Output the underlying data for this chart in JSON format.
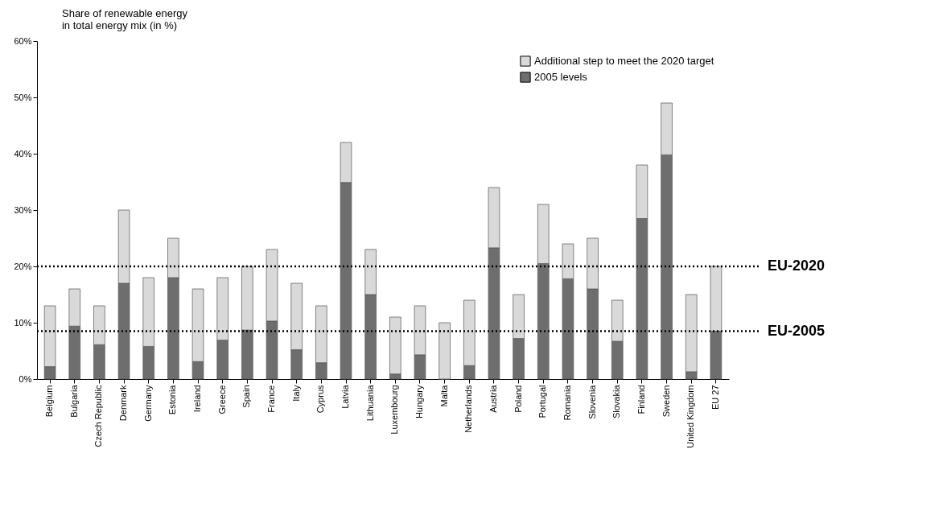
{
  "chart_data": {
    "type": "bar",
    "title": "Share of renewable energy\nin total energy mix (in %)",
    "categories": [
      "Belgium",
      "Bulgaria",
      "Czech Republic",
      "Denmark",
      "Germany",
      "Estonia",
      "Ireland",
      "Greece",
      "Spain",
      "France",
      "Italy",
      "Cyprus",
      "Latvia",
      "Lithuania",
      "Luxembourg",
      "Hungary",
      "Malta",
      "Netherlands",
      "Austria",
      "Poland",
      "Portugal",
      "Romania",
      "Slovenia",
      "Slovakia",
      "Finland",
      "Sweden",
      "United Kingdom",
      "EU 27"
    ],
    "series": [
      {
        "name": "2005 levels",
        "color": "#6e6e6e",
        "values": [
          2.2,
          9.4,
          6.1,
          17.0,
          5.8,
          18.0,
          3.1,
          6.9,
          8.7,
          10.3,
          5.2,
          2.9,
          34.9,
          15.0,
          0.9,
          4.3,
          0.0,
          2.4,
          23.3,
          7.2,
          20.5,
          17.8,
          16.0,
          6.7,
          28.5,
          39.8,
          1.3,
          8.5
        ]
      },
      {
        "name": "Additional step to meet the 2020 target",
        "color": "#d9d9d9",
        "values": [
          10.8,
          6.6,
          6.9,
          13.0,
          12.2,
          7.0,
          12.9,
          11.1,
          11.3,
          12.7,
          11.8,
          10.1,
          7.1,
          8.0,
          10.1,
          8.7,
          10.0,
          11.6,
          10.7,
          7.8,
          10.5,
          6.2,
          9.0,
          7.3,
          9.5,
          9.2,
          13.7,
          11.5
        ]
      }
    ],
    "stacked": true,
    "ylim": [
      0,
      60
    ],
    "yticks": [
      {
        "value": 0,
        "label": "0%"
      },
      {
        "value": 10,
        "label": "10%"
      },
      {
        "value": 20,
        "label": "20%"
      },
      {
        "value": 30,
        "label": "30%"
      },
      {
        "value": 40,
        "label": "40%"
      },
      {
        "value": 50,
        "label": "50%"
      },
      {
        "value": 60,
        "label": "60%"
      }
    ],
    "legend": "top right",
    "ref_lines": [
      {
        "axis": "y",
        "value": 20,
        "label": "EU-2020",
        "line_style": "dotted",
        "color": "#000000"
      },
      {
        "axis": "y",
        "value": 8.5,
        "label": "EU-2005",
        "line_style": "dotted",
        "color": "#000000"
      }
    ]
  }
}
